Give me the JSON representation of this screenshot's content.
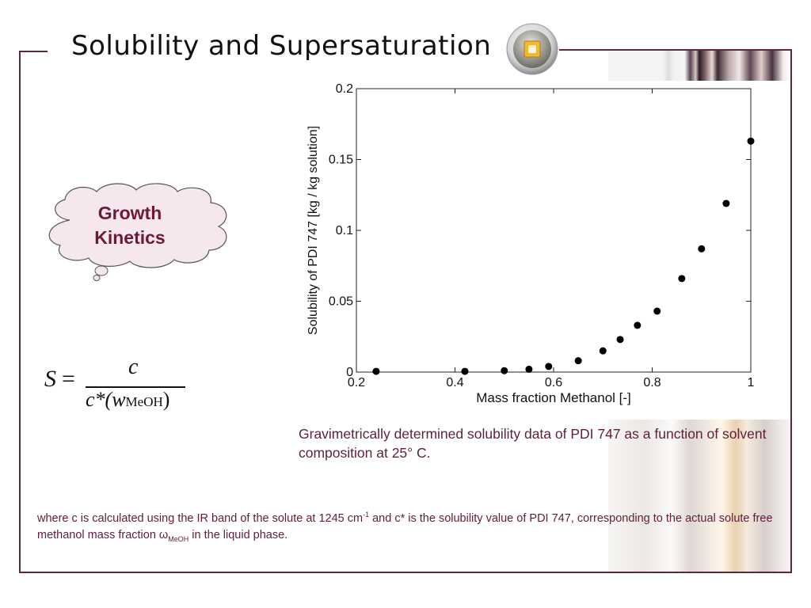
{
  "slide": {
    "title": "Solubility and Supersaturation",
    "accent_color": "#5a2a3c",
    "badge_icon": "square-badge-icon"
  },
  "cloud": {
    "line1": "Growth",
    "line2": "Kinetics",
    "fill": "#f6e6ee",
    "text_color": "#6b1a38"
  },
  "formula": {
    "lhs": "S",
    "eq": "=",
    "numerator": "c",
    "den_main": "c*(w",
    "den_sub": "MeOH",
    "den_close": ")"
  },
  "caption": "Gravimetrically determined solubility data of PDI 747 as a function of solvent composition at 25° C.",
  "footnote": {
    "part1": "where c is calculated using the IR band of the solute at 1245 cm",
    "sup": "-1",
    "part2": " and c* is the solubility value of PDI 747, corresponding to the actual solute free methanol mass fraction ω",
    "sub": "MeOH",
    "part3": " in the liquid phase."
  },
  "chart_data": {
    "type": "scatter",
    "xlabel": "Mass fraction Methanol [-]",
    "ylabel": "Solubility of PDI 747 [kg / kg solution]",
    "xlim": [
      0.2,
      1.0
    ],
    "ylim": [
      0,
      0.2
    ],
    "xticks": [
      0.2,
      0.4,
      0.6,
      0.8,
      1.0
    ],
    "xtick_labels": [
      "0.2",
      "0.4",
      "0.6",
      "0.8",
      "1"
    ],
    "yticks": [
      0,
      0.05,
      0.1,
      0.15,
      0.2
    ],
    "ytick_labels": [
      "0",
      "0.05",
      "0.1",
      "0.15",
      "0.2"
    ],
    "grid": false,
    "series": [
      {
        "x": [
          0.24,
          0.42,
          0.5,
          0.55,
          0.59,
          0.65,
          0.7,
          0.735,
          0.77,
          0.81,
          0.86,
          0.9,
          0.95,
          1.0
        ],
        "y": [
          0.0005,
          0.0005,
          0.001,
          0.002,
          0.004,
          0.008,
          0.015,
          0.023,
          0.033,
          0.043,
          0.066,
          0.087,
          0.119,
          0.163
        ]
      }
    ]
  }
}
